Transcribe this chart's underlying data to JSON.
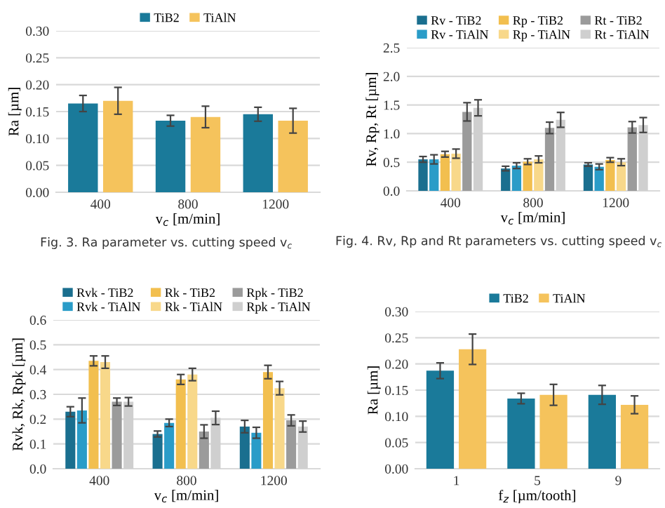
{
  "chart_data": [
    {
      "type": "bar",
      "xlabel": "v$_{c}$ [m/min]",
      "ylabel": "Ra [µm]",
      "categories": [
        "400",
        "800",
        "1200"
      ],
      "ylim": [
        0,
        0.3
      ],
      "yticks": [
        {
          "value": 0,
          "label": "0.00"
        },
        {
          "value": 0.05,
          "label": "0.05"
        },
        {
          "value": 0.1,
          "label": "0.10"
        },
        {
          "value": 0.15,
          "label": "0.15"
        },
        {
          "value": 0.2,
          "label": "0.20"
        },
        {
          "value": 0.25,
          "label": "0.25"
        },
        {
          "value": 0.3,
          "label": "0.30"
        }
      ],
      "grid": "y",
      "legend": "top",
      "annotations": [
        "Fig. 3. Ra parameter vs. cutting speed v$_{c}$"
      ],
      "series": [
        {
          "name": "TiB2",
          "color": "#1a7a9a",
          "values": [
            0.165,
            0.133,
            0.145
          ],
          "errors": [
            0.015,
            0.01,
            0.013
          ]
        },
        {
          "name": "TiAlN",
          "color": "#f5c35c",
          "values": [
            0.17,
            0.14,
            0.133
          ],
          "errors": [
            0.025,
            0.02,
            0.023
          ]
        }
      ]
    },
    {
      "type": "bar",
      "xlabel": "v$_{c}$ [m/min]",
      "ylabel": "Rv, Rp, Rt [µm]",
      "categories": [
        "400",
        "800",
        "1200"
      ],
      "ylim": [
        0,
        2.5
      ],
      "yticks": [
        {
          "value": 0,
          "label": "0.0"
        },
        {
          "value": 0.5,
          "label": "0.5"
        },
        {
          "value": 1,
          "label": "1.0"
        },
        {
          "value": 1.5,
          "label": "1.5"
        },
        {
          "value": 2,
          "label": "2.0"
        },
        {
          "value": 2.5,
          "label": "2.5"
        }
      ],
      "grid": "y",
      "legend": "top",
      "annotations": [
        "Fig. 4. Rv, Rp and Rt parameters vs. cutting speed v$_{c}$"
      ],
      "series": [
        {
          "name": "Rv - TiB2",
          "color": "#1a6f8f",
          "values": [
            0.55,
            0.39,
            0.46
          ],
          "errors": [
            0.05,
            0.04,
            0.03
          ]
        },
        {
          "name": "Rv - TiAlN",
          "color": "#2a9cc8",
          "values": [
            0.55,
            0.44,
            0.42
          ],
          "errors": [
            0.08,
            0.05,
            0.05
          ]
        },
        {
          "name": "Rp - TiB2",
          "color": "#f2bf4f",
          "values": [
            0.64,
            0.51,
            0.54
          ],
          "errors": [
            0.05,
            0.05,
            0.04
          ]
        },
        {
          "name": "Rp - TiAlN",
          "color": "#f8d88a",
          "values": [
            0.65,
            0.55,
            0.5
          ],
          "errors": [
            0.08,
            0.06,
            0.06
          ]
        },
        {
          "name": "Rt - TiB2",
          "color": "#9b9b9b",
          "values": [
            1.38,
            1.1,
            1.11
          ],
          "errors": [
            0.16,
            0.1,
            0.1
          ]
        },
        {
          "name": "Rt - TiAlN",
          "color": "#cfcfcf",
          "values": [
            1.45,
            1.24,
            1.15
          ],
          "errors": [
            0.14,
            0.13,
            0.13
          ]
        }
      ]
    },
    {
      "type": "bar",
      "xlabel": "v$_{c}$ [m/min]",
      "ylabel": "Rvk, Rk, Rpk [µm]",
      "categories": [
        "400",
        "800",
        "1200"
      ],
      "ylim": [
        0,
        0.6
      ],
      "yticks": [
        {
          "value": 0,
          "label": "0.0"
        },
        {
          "value": 0.1,
          "label": "0.1"
        },
        {
          "value": 0.2,
          "label": "0.2"
        },
        {
          "value": 0.3,
          "label": "0.3"
        },
        {
          "value": 0.4,
          "label": "0.4"
        },
        {
          "value": 0.5,
          "label": "0.5"
        },
        {
          "value": 0.6,
          "label": "0.6"
        }
      ],
      "grid": "y",
      "legend": "top",
      "series": [
        {
          "name": "Rvk - TiB2",
          "color": "#1a6f8f",
          "values": [
            0.23,
            0.14,
            0.17
          ],
          "errors": [
            0.02,
            0.012,
            0.025
          ]
        },
        {
          "name": "Rvk - TiAlN",
          "color": "#2a9cc8",
          "values": [
            0.235,
            0.185,
            0.145
          ],
          "errors": [
            0.05,
            0.015,
            0.022
          ]
        },
        {
          "name": "Rk - TiB2",
          "color": "#f2bf4f",
          "values": [
            0.435,
            0.36,
            0.39
          ],
          "errors": [
            0.02,
            0.02,
            0.027
          ]
        },
        {
          "name": "Rk - TiAlN",
          "color": "#f8d88a",
          "values": [
            0.43,
            0.38,
            0.325
          ],
          "errors": [
            0.025,
            0.025,
            0.027
          ]
        },
        {
          "name": "Rpk - TiB2",
          "color": "#9b9b9b",
          "values": [
            0.27,
            0.15,
            0.195
          ],
          "errors": [
            0.015,
            0.027,
            0.022
          ]
        },
        {
          "name": "Rpk - TiAlN",
          "color": "#cfcfcf",
          "values": [
            0.27,
            0.205,
            0.17
          ],
          "errors": [
            0.017,
            0.027,
            0.022
          ]
        }
      ]
    },
    {
      "type": "bar",
      "xlabel": "f$_{z}$ [µm/tooth]",
      "ylabel": "Ra [µm]",
      "categories": [
        "1",
        "5",
        "9"
      ],
      "ylim": [
        0,
        0.3
      ],
      "yticks": [
        {
          "value": 0,
          "label": "0.00"
        },
        {
          "value": 0.05,
          "label": "0.05"
        },
        {
          "value": 0.1,
          "label": "0.10"
        },
        {
          "value": 0.15,
          "label": "0.15"
        },
        {
          "value": 0.2,
          "label": "0.20"
        },
        {
          "value": 0.25,
          "label": "0.25"
        },
        {
          "value": 0.3,
          "label": "0.30"
        }
      ],
      "grid": "y",
      "legend": "top",
      "series": [
        {
          "name": "TiB2",
          "color": "#1a7a9a",
          "values": [
            0.187,
            0.134,
            0.141
          ],
          "errors": [
            0.015,
            0.01,
            0.018
          ]
        },
        {
          "name": "TiAlN",
          "color": "#f5c35c",
          "values": [
            0.228,
            0.141,
            0.122
          ],
          "errors": [
            0.029,
            0.02,
            0.017
          ]
        }
      ]
    }
  ]
}
